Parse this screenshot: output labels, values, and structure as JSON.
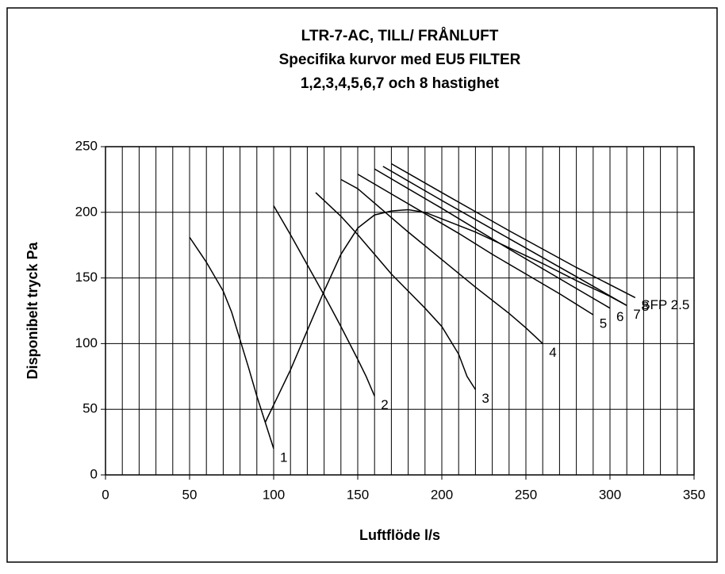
{
  "chart_data": {
    "type": "line",
    "title": [
      "LTR-7-AC, TILL/ FRÅNLUFT",
      "Specifika kurvor med EU5 FILTER",
      "1,2,3,4,5,6,7 och 8 hastighet"
    ],
    "x_label": "Luftflöde l/s",
    "y_label": "Disponibelt tryck Pa",
    "xlim": [
      0,
      350
    ],
    "xticks": [
      0,
      50,
      100,
      150,
      200,
      250,
      300,
      350
    ],
    "x_gridlines": [
      10,
      20,
      30,
      40,
      50,
      60,
      70,
      80,
      90,
      100,
      110,
      120,
      130,
      140,
      150,
      160,
      170,
      180,
      190,
      200,
      210,
      220,
      230,
      240,
      250,
      260,
      270,
      280,
      290,
      300,
      310,
      320,
      330,
      340
    ],
    "ylim": [
      0,
      250
    ],
    "yticks": [
      0,
      50,
      100,
      150,
      200,
      250
    ],
    "grid": true,
    "series": [
      {
        "name": "1",
        "color": "#000000",
        "x": [
          50,
          60,
          70,
          75,
          80,
          85,
          90,
          95,
          100
        ],
        "values": [
          181,
          162,
          140,
          124,
          103,
          82,
          60,
          40,
          20
        ]
      },
      {
        "name": "2",
        "color": "#000000",
        "x": [
          100,
          110,
          120,
          130,
          140,
          150,
          155,
          160
        ],
        "values": [
          205,
          183,
          160,
          137,
          113,
          88,
          75,
          60
        ]
      },
      {
        "name": "3",
        "color": "#000000",
        "x": [
          125,
          140,
          150,
          160,
          170,
          180,
          190,
          200,
          210,
          215,
          220
        ],
        "values": [
          215,
          197,
          183,
          168,
          153,
          140,
          127,
          113,
          92,
          75,
          65
        ]
      },
      {
        "name": "4",
        "color": "#000000",
        "x": [
          140,
          150,
          160,
          180,
          200,
          220,
          240,
          250,
          255,
          260
        ],
        "values": [
          225,
          218,
          207,
          185,
          164,
          143,
          123,
          112,
          106,
          100
        ]
      },
      {
        "name": "5",
        "color": "#000000",
        "x": [
          150,
          170,
          190,
          210,
          230,
          250,
          270,
          290
        ],
        "values": [
          229,
          214,
          199,
          184,
          168,
          153,
          138,
          122
        ]
      },
      {
        "name": "6",
        "color": "#000000",
        "x": [
          160,
          200,
          240,
          280,
          300
        ],
        "values": [
          233,
          203,
          172,
          142,
          127
        ]
      },
      {
        "name": "7",
        "color": "#000000",
        "x": [
          165,
          200,
          240,
          280,
          310
        ],
        "values": [
          235,
          209,
          180,
          151,
          129
        ]
      },
      {
        "name": "8",
        "color": "#000000",
        "x": [
          170,
          200,
          240,
          280,
          315
        ],
        "values": [
          237,
          215,
          186,
          158,
          135
        ]
      },
      {
        "name": "SFP 2.5",
        "color": "#000000",
        "x": [
          95,
          110,
          120,
          130,
          140,
          150,
          160,
          170,
          180,
          190,
          200,
          220,
          240,
          260,
          280,
          300,
          310
        ],
        "values": [
          40,
          80,
          110,
          140,
          168,
          188,
          198,
          201,
          202,
          200,
          195,
          185,
          173,
          161,
          148,
          136,
          129
        ]
      }
    ]
  }
}
